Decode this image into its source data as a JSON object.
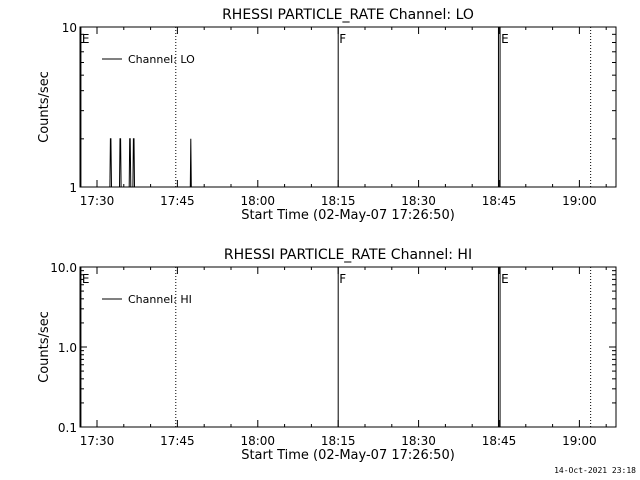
{
  "footer": {
    "timestamp": "14-Oct-2021 23:18"
  },
  "colors": {
    "background": "#ffffff",
    "foreground": "#000000"
  },
  "chart_data": [
    {
      "type": "line",
      "title": "RHESSI PARTICLE_RATE Channel: LO",
      "xlabel": "Start Time (02-May-07 17:26:50)",
      "ylabel": "Counts/sec",
      "x_unit": "minutes after 17:00 UT",
      "xlim": [
        26.83,
        126.83
      ],
      "x_ticks": [
        {
          "x": 30,
          "label": "17:30"
        },
        {
          "x": 45,
          "label": "17:45"
        },
        {
          "x": 60,
          "label": "18:00"
        },
        {
          "x": 75,
          "label": "18:15"
        },
        {
          "x": 90,
          "label": "18:30"
        },
        {
          "x": 105,
          "label": "18:45"
        },
        {
          "x": 120,
          "label": "19:00"
        }
      ],
      "y_scale": "log",
      "ylim": [
        1,
        10
      ],
      "y_ticks": [
        {
          "y": 1,
          "label": "1"
        },
        {
          "y": 10,
          "label": "10"
        }
      ],
      "legend": {
        "position": "top-left",
        "entries": [
          "Channel: LO"
        ]
      },
      "series": [
        {
          "name": "Channel: LO",
          "x": [
            32.4,
            32.5,
            32.6,
            32.7,
            32.8,
            34.2,
            34.3,
            34.4,
            34.5,
            34.6,
            36.0,
            36.1,
            36.2,
            36.3,
            36.4,
            36.7,
            36.8,
            36.9,
            37.0,
            37.1,
            47.4,
            47.5,
            47.6,
            47.7
          ],
          "y": [
            1,
            2,
            2,
            1,
            1,
            1,
            2,
            2,
            1,
            1,
            1,
            2,
            2,
            1,
            1,
            1,
            2,
            2,
            1,
            1,
            1,
            2,
            1,
            1
          ]
        }
      ],
      "markers": [
        {
          "x": 27.0,
          "label": "E",
          "style": "solid"
        },
        {
          "x": 44.7,
          "label": "",
          "style": "dotted"
        },
        {
          "x": 75.0,
          "label": "F",
          "style": "solid"
        },
        {
          "x": 104.9,
          "label": "",
          "style": "solid"
        },
        {
          "x": 105.2,
          "label": "E",
          "style": "solid"
        },
        {
          "x": 122.1,
          "label": "",
          "style": "dotted"
        }
      ]
    },
    {
      "type": "line",
      "title": "RHESSI PARTICLE_RATE Channel: HI",
      "xlabel": "Start Time (02-May-07 17:26:50)",
      "ylabel": "Counts/sec",
      "x_unit": "minutes after 17:00 UT",
      "xlim": [
        26.83,
        126.83
      ],
      "x_ticks": [
        {
          "x": 30,
          "label": "17:30"
        },
        {
          "x": 45,
          "label": "17:45"
        },
        {
          "x": 60,
          "label": "18:00"
        },
        {
          "x": 75,
          "label": "18:15"
        },
        {
          "x": 90,
          "label": "18:30"
        },
        {
          "x": 105,
          "label": "18:45"
        },
        {
          "x": 120,
          "label": "19:00"
        }
      ],
      "y_scale": "log",
      "ylim": [
        0.1,
        10
      ],
      "y_ticks": [
        {
          "y": 0.1,
          "label": "0.1"
        },
        {
          "y": 1,
          "label": "1.0"
        },
        {
          "y": 10,
          "label": "10.0"
        }
      ],
      "legend": {
        "position": "top-left",
        "entries": [
          "Channel: HI"
        ]
      },
      "series": [
        {
          "name": "Channel: HI",
          "x": [],
          "y": []
        }
      ],
      "markers": [
        {
          "x": 27.0,
          "label": "E",
          "style": "solid"
        },
        {
          "x": 44.7,
          "label": "",
          "style": "dotted"
        },
        {
          "x": 75.0,
          "label": "F",
          "style": "solid"
        },
        {
          "x": 104.9,
          "label": "",
          "style": "solid"
        },
        {
          "x": 105.2,
          "label": "E",
          "style": "solid"
        },
        {
          "x": 122.1,
          "label": "",
          "style": "dotted"
        }
      ]
    }
  ]
}
